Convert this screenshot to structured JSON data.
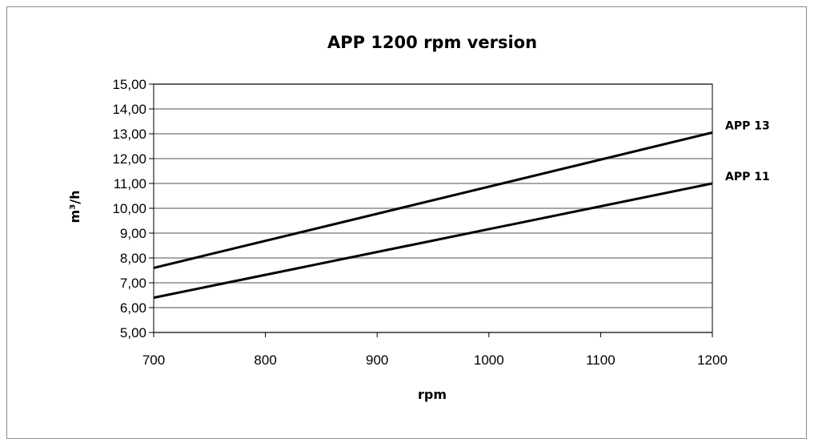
{
  "chart_data": {
    "type": "line",
    "title": "APP 1200 rpm version",
    "xlabel": "rpm",
    "ylabel": "m³/h",
    "xlim": [
      700,
      1200
    ],
    "ylim": [
      5,
      15
    ],
    "x_ticks": [
      "700",
      "800",
      "900",
      "1000",
      "1100",
      "1200"
    ],
    "y_ticks": [
      "5,00",
      "6,00",
      "7,00",
      "8,00",
      "9,00",
      "10,00",
      "11,00",
      "12,00",
      "13,00",
      "14,00",
      "15,00"
    ],
    "grid": "horizontal",
    "legend": "series labels at right end of lines",
    "series": [
      {
        "name": "APP 13",
        "x": [
          700,
          1200
        ],
        "y": [
          7.6,
          13.05
        ]
      },
      {
        "name": "APP 11",
        "x": [
          700,
          1200
        ],
        "y": [
          6.4,
          11.0
        ]
      }
    ]
  }
}
